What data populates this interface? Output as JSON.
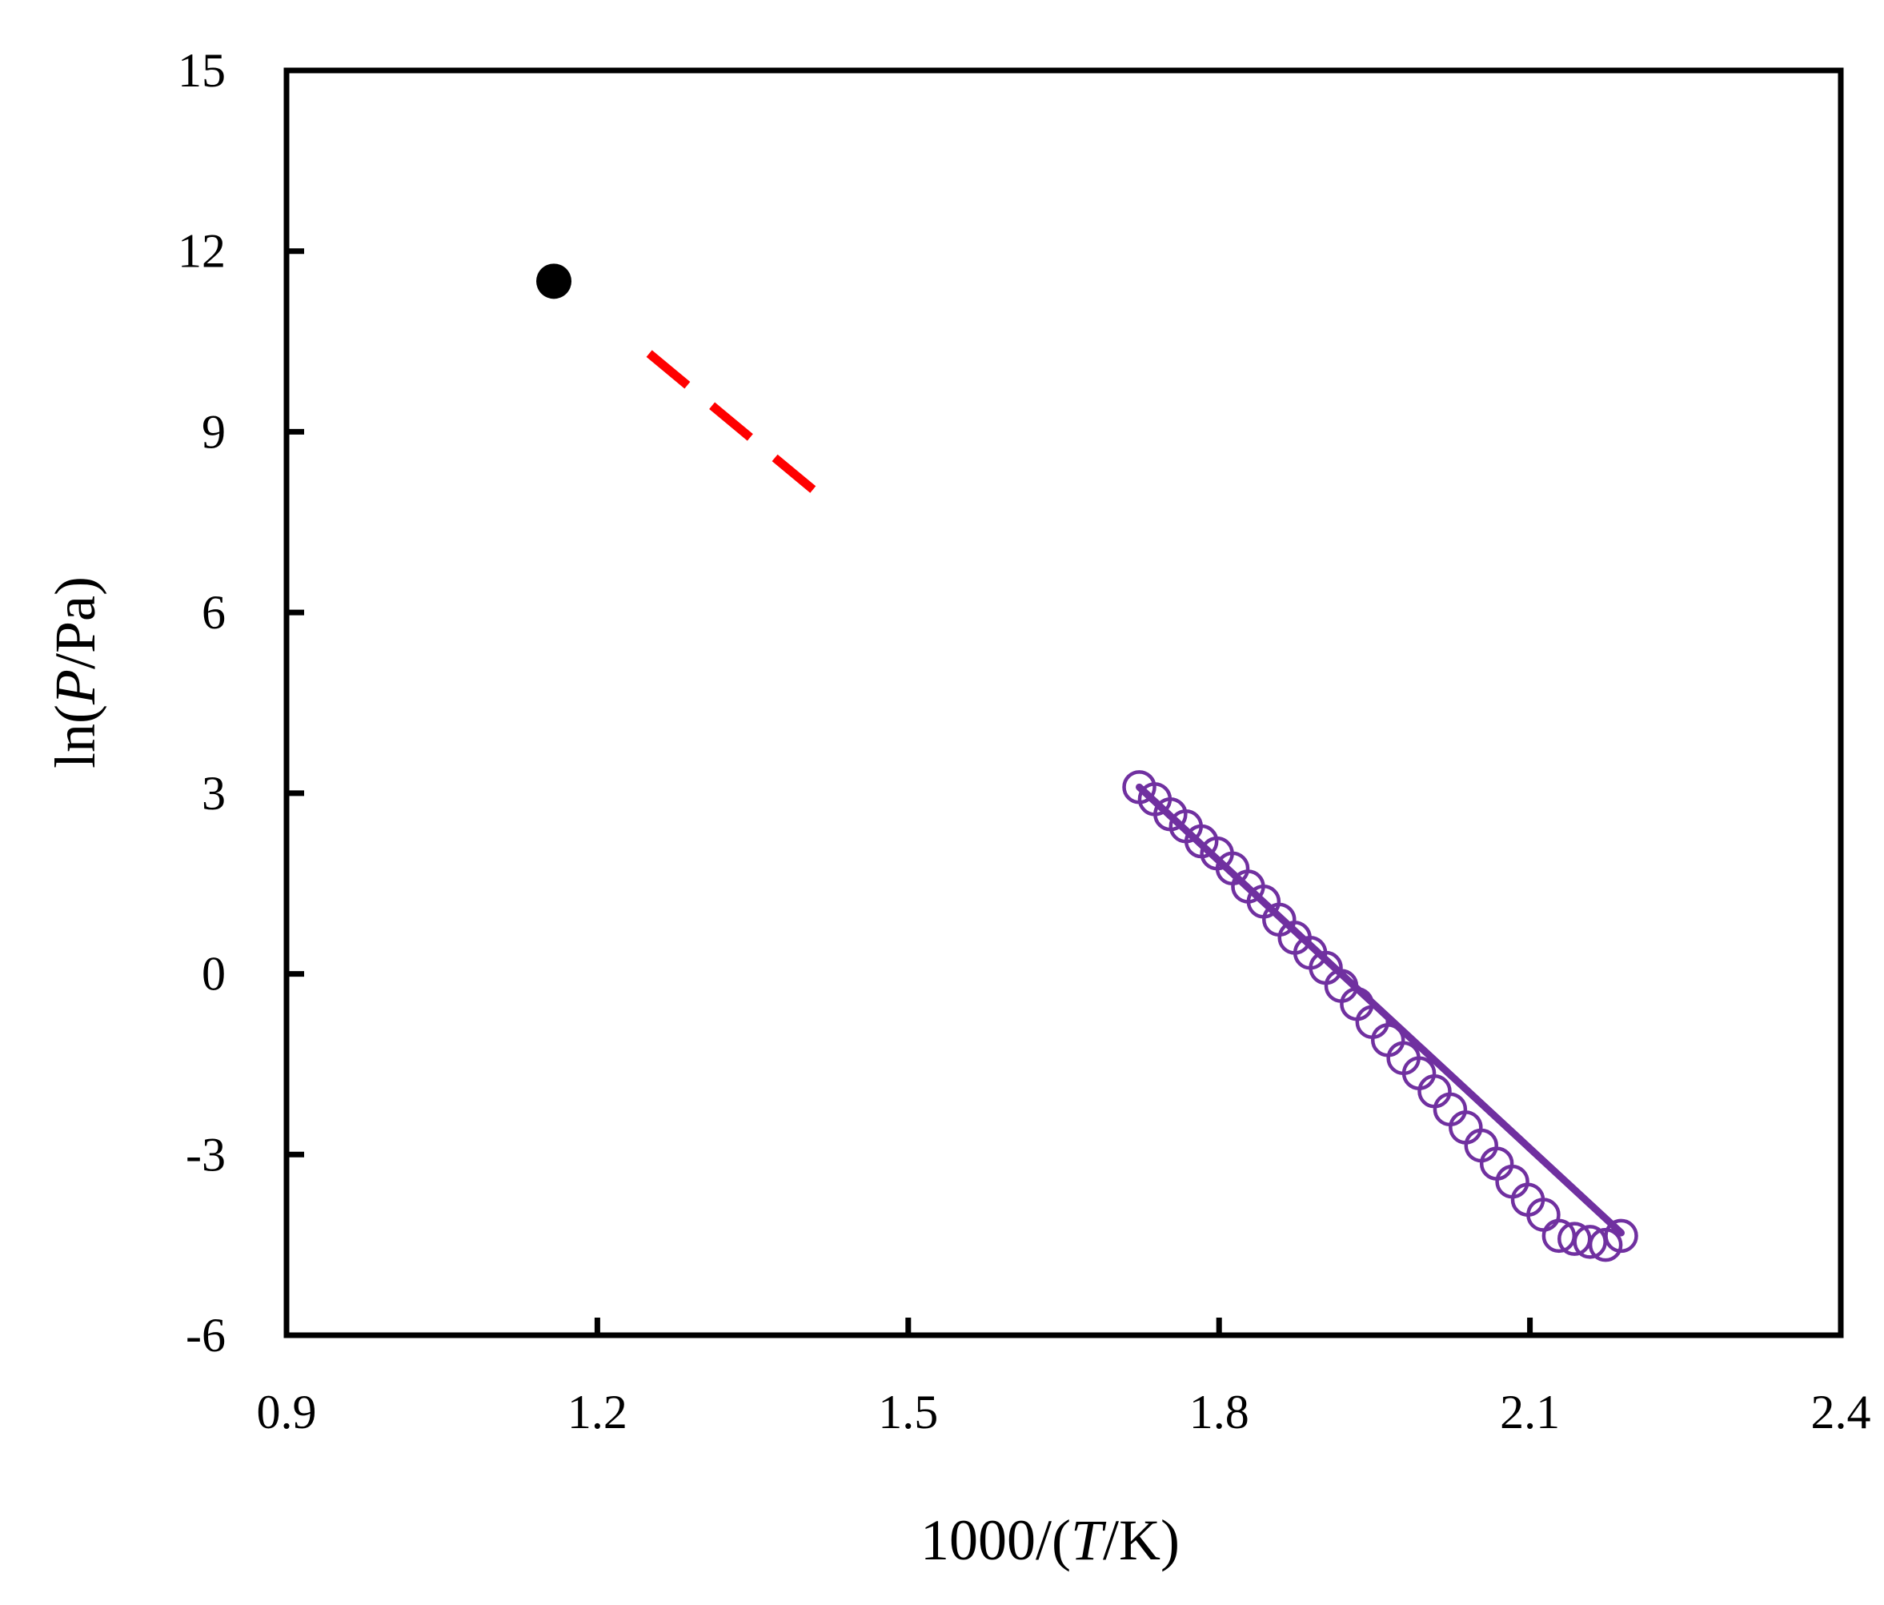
{
  "chart_data": {
    "type": "scatter",
    "title": "",
    "xlabel": {
      "pre": "1000/(",
      "italic": "T",
      "post": "/K)"
    },
    "ylabel": {
      "pre": "ln(",
      "italic": "P",
      "post": "/Pa)"
    },
    "xlim": [
      0.9,
      2.4
    ],
    "ylim": [
      -6,
      15
    ],
    "xticks": [
      0.9,
      1.2,
      1.5,
      1.8,
      2.1,
      2.4
    ],
    "yticks": [
      -6,
      -3,
      0,
      3,
      6,
      9,
      12,
      15
    ],
    "xtick_labels": [
      "0.9",
      "1.2",
      "1.5",
      "1.8",
      "2.1",
      "2.4"
    ],
    "ytick_labels": [
      "-6",
      "-3",
      "0",
      "3",
      "6",
      "9",
      "12",
      "15"
    ],
    "grid": false,
    "legend": "none",
    "series": [
      {
        "kind": "point",
        "marker": "filled-circle",
        "color": "#000000",
        "x": [
          1.158
        ],
        "y": [
          11.5
        ]
      },
      {
        "kind": "line",
        "style": "dashed",
        "color": "#ff0000",
        "x": [
          1.25,
          1.425
        ],
        "y": [
          10.3,
          7.8
        ]
      },
      {
        "kind": "points",
        "marker": "open-circle",
        "color": "#7030a0",
        "x": [
          1.723,
          1.738,
          1.753,
          1.768,
          1.783,
          1.798,
          1.813,
          1.828,
          1.843,
          1.858,
          1.873,
          1.888,
          1.903,
          1.918,
          1.933,
          1.948,
          1.963,
          1.978,
          1.993,
          2.008,
          2.023,
          2.038,
          2.053,
          2.068,
          2.083,
          2.098,
          2.113,
          2.128,
          2.143,
          2.158,
          2.173,
          2.188
        ],
        "y": [
          3.1,
          2.9,
          2.65,
          2.45,
          2.2,
          2.0,
          1.75,
          1.45,
          1.2,
          0.9,
          0.6,
          0.35,
          0.1,
          -0.2,
          -0.5,
          -0.8,
          -1.1,
          -1.4,
          -1.65,
          -1.95,
          -2.25,
          -2.55,
          -2.85,
          -3.15,
          -3.45,
          -3.75,
          -4.0,
          -4.35,
          -4.4,
          -4.45,
          -4.5,
          -4.35
        ]
      },
      {
        "kind": "line",
        "style": "solid",
        "color": "#7030a0",
        "x": [
          1.723,
          2.188
        ],
        "y": [
          3.1,
          -4.3
        ]
      }
    ]
  }
}
